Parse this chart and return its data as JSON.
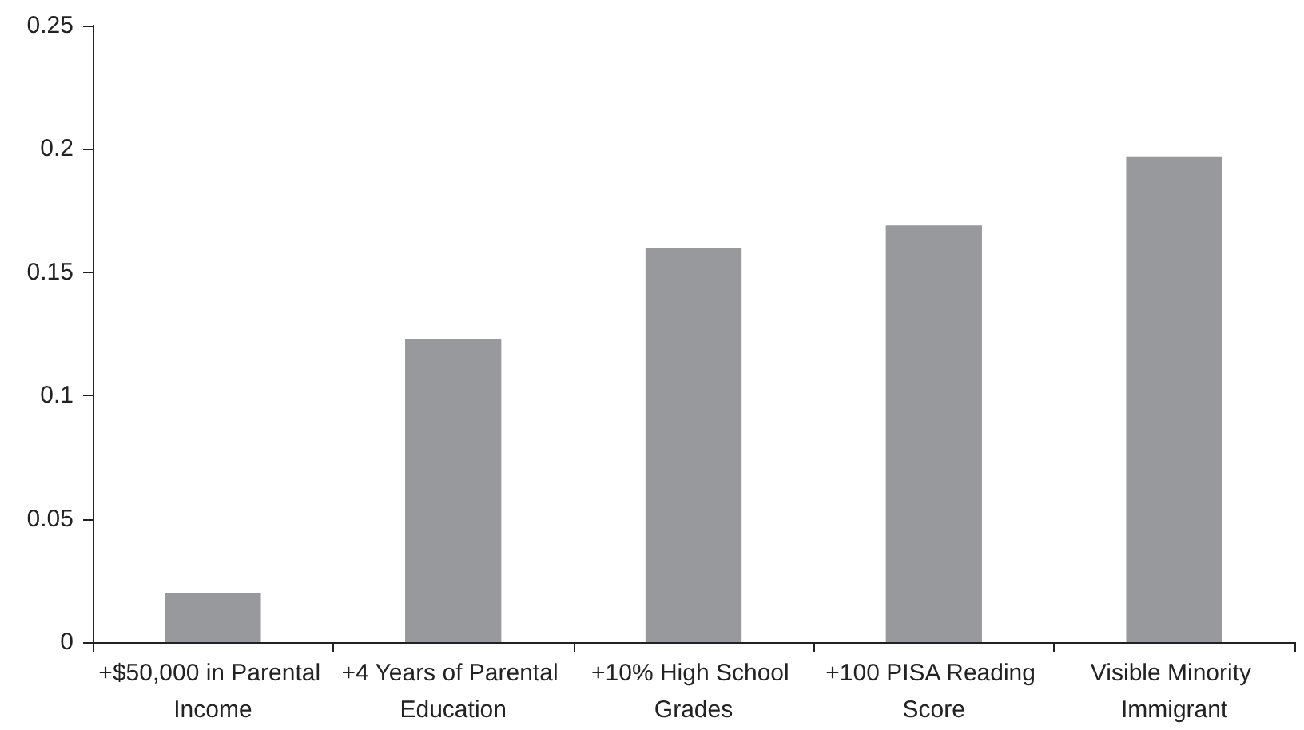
{
  "chart_data": {
    "type": "bar",
    "categories": [
      "+$50,000 in Parental Income",
      "+4 Years of Parental Education",
      "+10% High School Grades",
      "+100 PISA Reading Score",
      "Visible Minority Immigrant"
    ],
    "values": [
      0.02,
      0.123,
      0.16,
      0.169,
      0.197
    ],
    "color": "#98999d",
    "ylim": [
      0,
      0.25
    ],
    "yticks": [
      0,
      0.05,
      0.1,
      0.15,
      0.2,
      0.25
    ],
    "grid": false
  }
}
